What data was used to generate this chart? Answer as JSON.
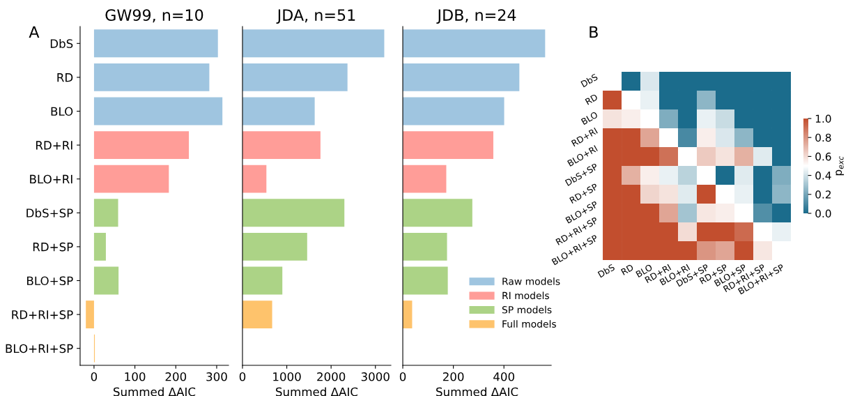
{
  "chart_data": [
    {
      "type": "bar",
      "orientation": "horizontal",
      "title": "GW99, n=10",
      "xlabel": "Summed ΔAIC",
      "annotations": [
        "A"
      ],
      "categories": [
        "DbS",
        "RD",
        "BLO",
        "RD+RI",
        "BLO+RI",
        "DbS+SP",
        "RD+SP",
        "BLO+SP",
        "RD+RI+SP",
        "BLO+RI+SP"
      ],
      "series": [
        {
          "color": "#9fc5e0",
          "values": [
            303,
            282,
            314,
            null,
            null,
            null,
            null,
            null,
            null,
            null
          ]
        },
        {
          "color": "#ff9d98",
          "values": [
            null,
            null,
            null,
            232,
            183,
            null,
            null,
            null,
            null,
            null
          ]
        },
        {
          "color": "#acd386",
          "values": [
            null,
            null,
            null,
            null,
            null,
            59,
            29,
            60,
            null,
            null
          ]
        },
        {
          "color": "#fec36c",
          "values": [
            null,
            null,
            null,
            null,
            null,
            null,
            null,
            null,
            -20,
            2
          ]
        }
      ],
      "xlim": [
        -34,
        329
      ],
      "xticks": [
        0,
        100,
        200,
        300
      ]
    },
    {
      "type": "bar",
      "orientation": "horizontal",
      "title": "JDA, n=51",
      "xlabel": "Summed ΔAIC",
      "tick_labels": "x",
      "categories": [
        null,
        null,
        null,
        null,
        null,
        null,
        null,
        null,
        null,
        null
      ],
      "series": [
        {
          "color": "#9fc5e0",
          "values": [
            3200,
            2370,
            1630,
            null,
            null,
            null,
            null,
            null,
            null,
            null
          ]
        },
        {
          "color": "#ff9d98",
          "values": [
            null,
            null,
            null,
            1760,
            540,
            null,
            null,
            null,
            null,
            null
          ]
        },
        {
          "color": "#acd386",
          "values": [
            null,
            null,
            null,
            null,
            null,
            2300,
            1460,
            900,
            null,
            null
          ]
        },
        {
          "color": "#fec36c",
          "values": [
            null,
            null,
            null,
            null,
            null,
            null,
            null,
            null,
            670,
            0
          ]
        }
      ],
      "xlim": [
        0,
        3350
      ],
      "xticks": [
        0,
        1000,
        2000,
        3000
      ]
    },
    {
      "type": "bar",
      "orientation": "horizontal",
      "title": "JDB, n=24",
      "xlabel": "Summed ΔAIC",
      "tick_labels": "x",
      "legend": "bottom right",
      "categories": [
        null,
        null,
        null,
        null,
        null,
        null,
        null,
        null,
        null,
        null
      ],
      "series": [
        {
          "name": "Raw models",
          "color": "#9fc5e0",
          "values": [
            563,
            461,
            401,
            null,
            null,
            null,
            null,
            null,
            null,
            null
          ]
        },
        {
          "name": "RI models",
          "color": "#ff9d98",
          "values": [
            null,
            null,
            null,
            358,
            172,
            null,
            null,
            null,
            null,
            null
          ]
        },
        {
          "name": "SP models",
          "color": "#acd386",
          "values": [
            null,
            null,
            null,
            null,
            null,
            275,
            175,
            178,
            null,
            null
          ]
        },
        {
          "name": "Full models",
          "color": "#fec36c",
          "values": [
            null,
            null,
            null,
            null,
            null,
            null,
            null,
            null,
            37,
            0
          ]
        }
      ],
      "xlim": [
        0,
        587
      ],
      "xticks": [
        0,
        200,
        400
      ]
    },
    {
      "type": "heatmap",
      "annotations": [
        "B"
      ],
      "clabel": "p$_{exc}$",
      "categories": [
        "DbS",
        "RD",
        "BLO",
        "RD+RI",
        "BLO+RI",
        "DbS+SP",
        "RD+SP",
        "BLO+SP",
        "RD+RI+SP",
        "BLO+RI+SP"
      ],
      "y_categories": [
        "DbS",
        "RD",
        "BLO",
        "RD+RI",
        "BLO+RI",
        "DbS+SP",
        "RD+SP",
        "BLO+SP",
        "RD+RI+SP",
        "BLO+RI+SP"
      ],
      "cells": [
        [
          null,
          0,
          0.42,
          0,
          0,
          0,
          0,
          0,
          0,
          0
        ],
        [
          1,
          null,
          0.45,
          0,
          0,
          0.25,
          0,
          0,
          0,
          0
        ],
        [
          0.58,
          0.55,
          null,
          0.22,
          0,
          0.45,
          0.38,
          0,
          0,
          0
        ],
        [
          1,
          1,
          0.75,
          null,
          0.1,
          0.55,
          0.42,
          0.25,
          0,
          0
        ],
        [
          1,
          1,
          1,
          0.9,
          null,
          0.65,
          0.58,
          0.72,
          0.43,
          0
        ],
        [
          1,
          0.72,
          0.55,
          0.45,
          0.35,
          null,
          0,
          0.43,
          0,
          0.22
        ],
        [
          1,
          1,
          0.62,
          0.58,
          0.43,
          1,
          null,
          0.45,
          0,
          0.25
        ],
        [
          1,
          1,
          1,
          0.75,
          0.3,
          0.57,
          0.55,
          null,
          0.12,
          0
        ],
        [
          1,
          1,
          1,
          1,
          0.6,
          1,
          1,
          0.92,
          null,
          0.45
        ],
        [
          1,
          1,
          1,
          1,
          1,
          0.8,
          0.75,
          1,
          0.57,
          null
        ]
      ],
      "clim": [
        0,
        1
      ],
      "cticks": [
        {
          "value": 0,
          "label": "0.0"
        },
        {
          "value": 0.2,
          "label": "0.2"
        },
        {
          "value": 0.4,
          "label": "0.4"
        },
        {
          "value": 0.6,
          "label": "0.6"
        },
        {
          "value": 0.8,
          "label": "0.8"
        },
        {
          "value": 1,
          "label": "1.0"
        }
      ]
    }
  ]
}
